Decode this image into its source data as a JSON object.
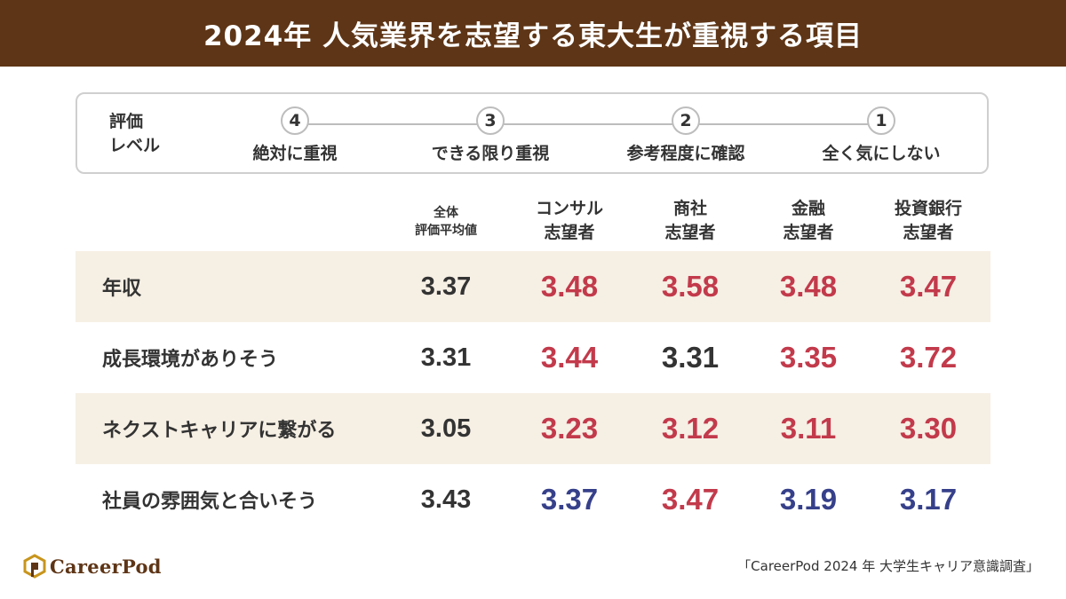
{
  "title": "2024年 人気業界を志望する東大生が重視する項目",
  "legend": {
    "label_line1": "評価",
    "label_line2": "レベル",
    "levels": [
      {
        "num": "4",
        "text": "絶対に重視"
      },
      {
        "num": "3",
        "text": "できる限り重視"
      },
      {
        "num": "2",
        "text": "参考程度に確認"
      },
      {
        "num": "1",
        "text": "全く気にしない"
      }
    ]
  },
  "colors": {
    "header_bg": "#5e3516",
    "row_shade": "#f6efe4",
    "above_average": "#c23a4b",
    "below_average": "#36408a",
    "neutral": "#333333"
  },
  "chart_data": {
    "type": "table",
    "title": "2024年 人気業界を志望する東大生が重視する項目",
    "columns": [
      {
        "line1": "全体",
        "line2": "評価平均値"
      },
      {
        "line1": "コンサル",
        "line2": "志望者"
      },
      {
        "line1": "商社",
        "line2": "志望者"
      },
      {
        "line1": "金融",
        "line2": "志望者"
      },
      {
        "line1": "投資銀行",
        "line2": "志望者"
      }
    ],
    "rows": [
      {
        "label": "年収",
        "values": [
          "3.37",
          "3.48",
          "3.58",
          "3.48",
          "3.47"
        ],
        "tones": [
          "neutral",
          "above_average",
          "above_average",
          "above_average",
          "above_average"
        ]
      },
      {
        "label": "成長環境がありそう",
        "values": [
          "3.31",
          "3.44",
          "3.31",
          "3.35",
          "3.72"
        ],
        "tones": [
          "neutral",
          "above_average",
          "neutral",
          "above_average",
          "above_average"
        ]
      },
      {
        "label": "ネクストキャリアに繋がる",
        "values": [
          "3.05",
          "3.23",
          "3.12",
          "3.11",
          "3.30"
        ],
        "tones": [
          "neutral",
          "above_average",
          "above_average",
          "above_average",
          "above_average"
        ]
      },
      {
        "label": "社員の雰囲気と合いそう",
        "values": [
          "3.43",
          "3.37",
          "3.47",
          "3.19",
          "3.17"
        ],
        "tones": [
          "neutral",
          "below_average",
          "above_average",
          "below_average",
          "below_average"
        ]
      }
    ]
  },
  "footer": {
    "logo_text": "CareerPod",
    "source": "「CareerPod 2024 年 大学生キャリア意識調査」"
  }
}
